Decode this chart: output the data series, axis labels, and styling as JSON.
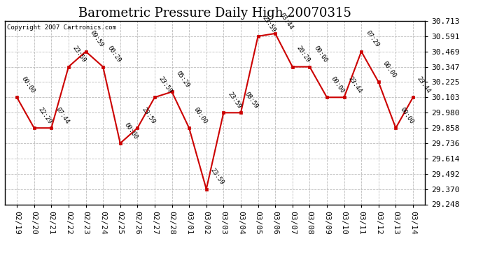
{
  "title": "Barometric Pressure Daily High 20070315",
  "copyright": "Copyright 2007 Cartronics.com",
  "dates": [
    "02/19",
    "02/20",
    "02/21",
    "02/22",
    "02/23",
    "02/24",
    "02/25",
    "02/26",
    "02/27",
    "02/28",
    "03/01",
    "03/02",
    "03/03",
    "03/04",
    "03/05",
    "03/06",
    "03/07",
    "03/08",
    "03/09",
    "03/10",
    "03/11",
    "03/12",
    "03/13",
    "03/14"
  ],
  "values": [
    30.103,
    29.858,
    29.858,
    30.347,
    30.469,
    30.347,
    29.736,
    29.858,
    30.103,
    30.147,
    29.858,
    29.37,
    29.98,
    29.98,
    30.591,
    30.613,
    30.347,
    30.347,
    30.103,
    30.103,
    30.469,
    30.225,
    29.858,
    30.103
  ],
  "point_labels": [
    "00:00",
    "22:29",
    "07:44",
    "23:59",
    "09:59",
    "00:29",
    "00:00",
    "23:59",
    "23:59",
    "05:29",
    "00:00",
    "23:59",
    "23:59",
    "08:59",
    "23:59",
    "03:44",
    "20:29",
    "00:00",
    "00:00",
    "23:44",
    "07:29",
    "00:00",
    "00:00",
    "23:44"
  ],
  "y_ticks": [
    29.248,
    29.37,
    29.492,
    29.614,
    29.736,
    29.858,
    29.98,
    30.103,
    30.225,
    30.347,
    30.469,
    30.591,
    30.713
  ],
  "y_min": 29.248,
  "y_max": 30.713,
  "line_color": "#cc0000",
  "marker_color": "#cc0000",
  "bg_color": "#ffffff",
  "grid_color": "#bbbbbb",
  "title_fontsize": 13,
  "tick_fontsize": 8,
  "point_label_fontsize": 6.5
}
